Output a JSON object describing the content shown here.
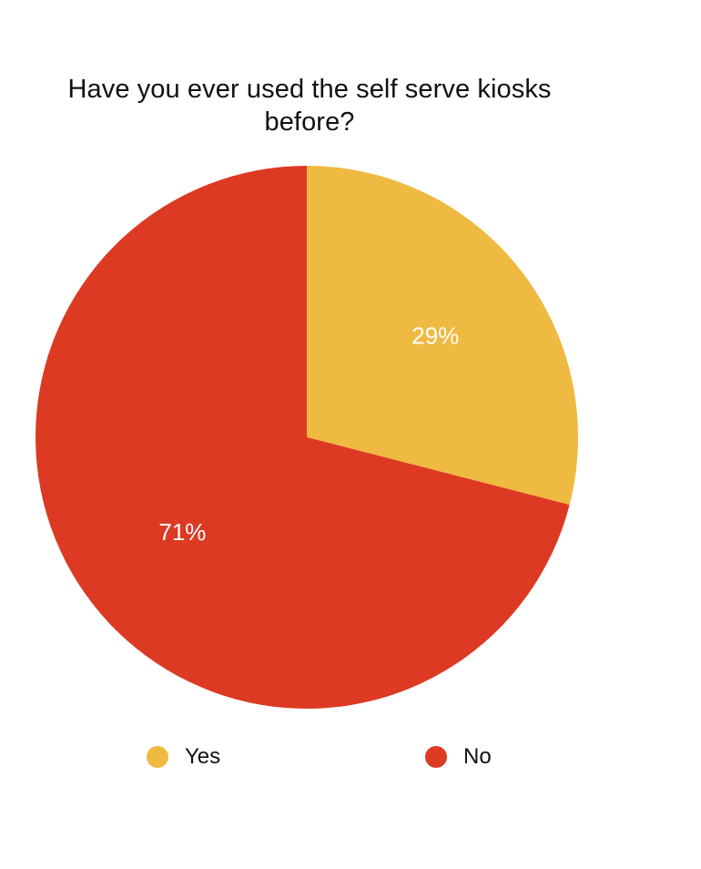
{
  "chart_data": {
    "type": "pie",
    "title": "Have you ever used the self serve kiosks before?",
    "title_lines": [
      "Have you ever used the self serve kiosks",
      "before?"
    ],
    "categories": [
      "Yes",
      "No"
    ],
    "values": [
      29,
      71
    ],
    "value_labels": [
      "29%",
      "71%"
    ],
    "colors": [
      "#EFBA42",
      "#DD3A23"
    ],
    "start": "12 o'clock",
    "direction": "clockwise",
    "legend": {
      "position": "bottom",
      "entries": [
        {
          "label": "Yes",
          "color": "#EFBA42"
        },
        {
          "label": "No",
          "color": "#DD3A23"
        }
      ]
    }
  }
}
